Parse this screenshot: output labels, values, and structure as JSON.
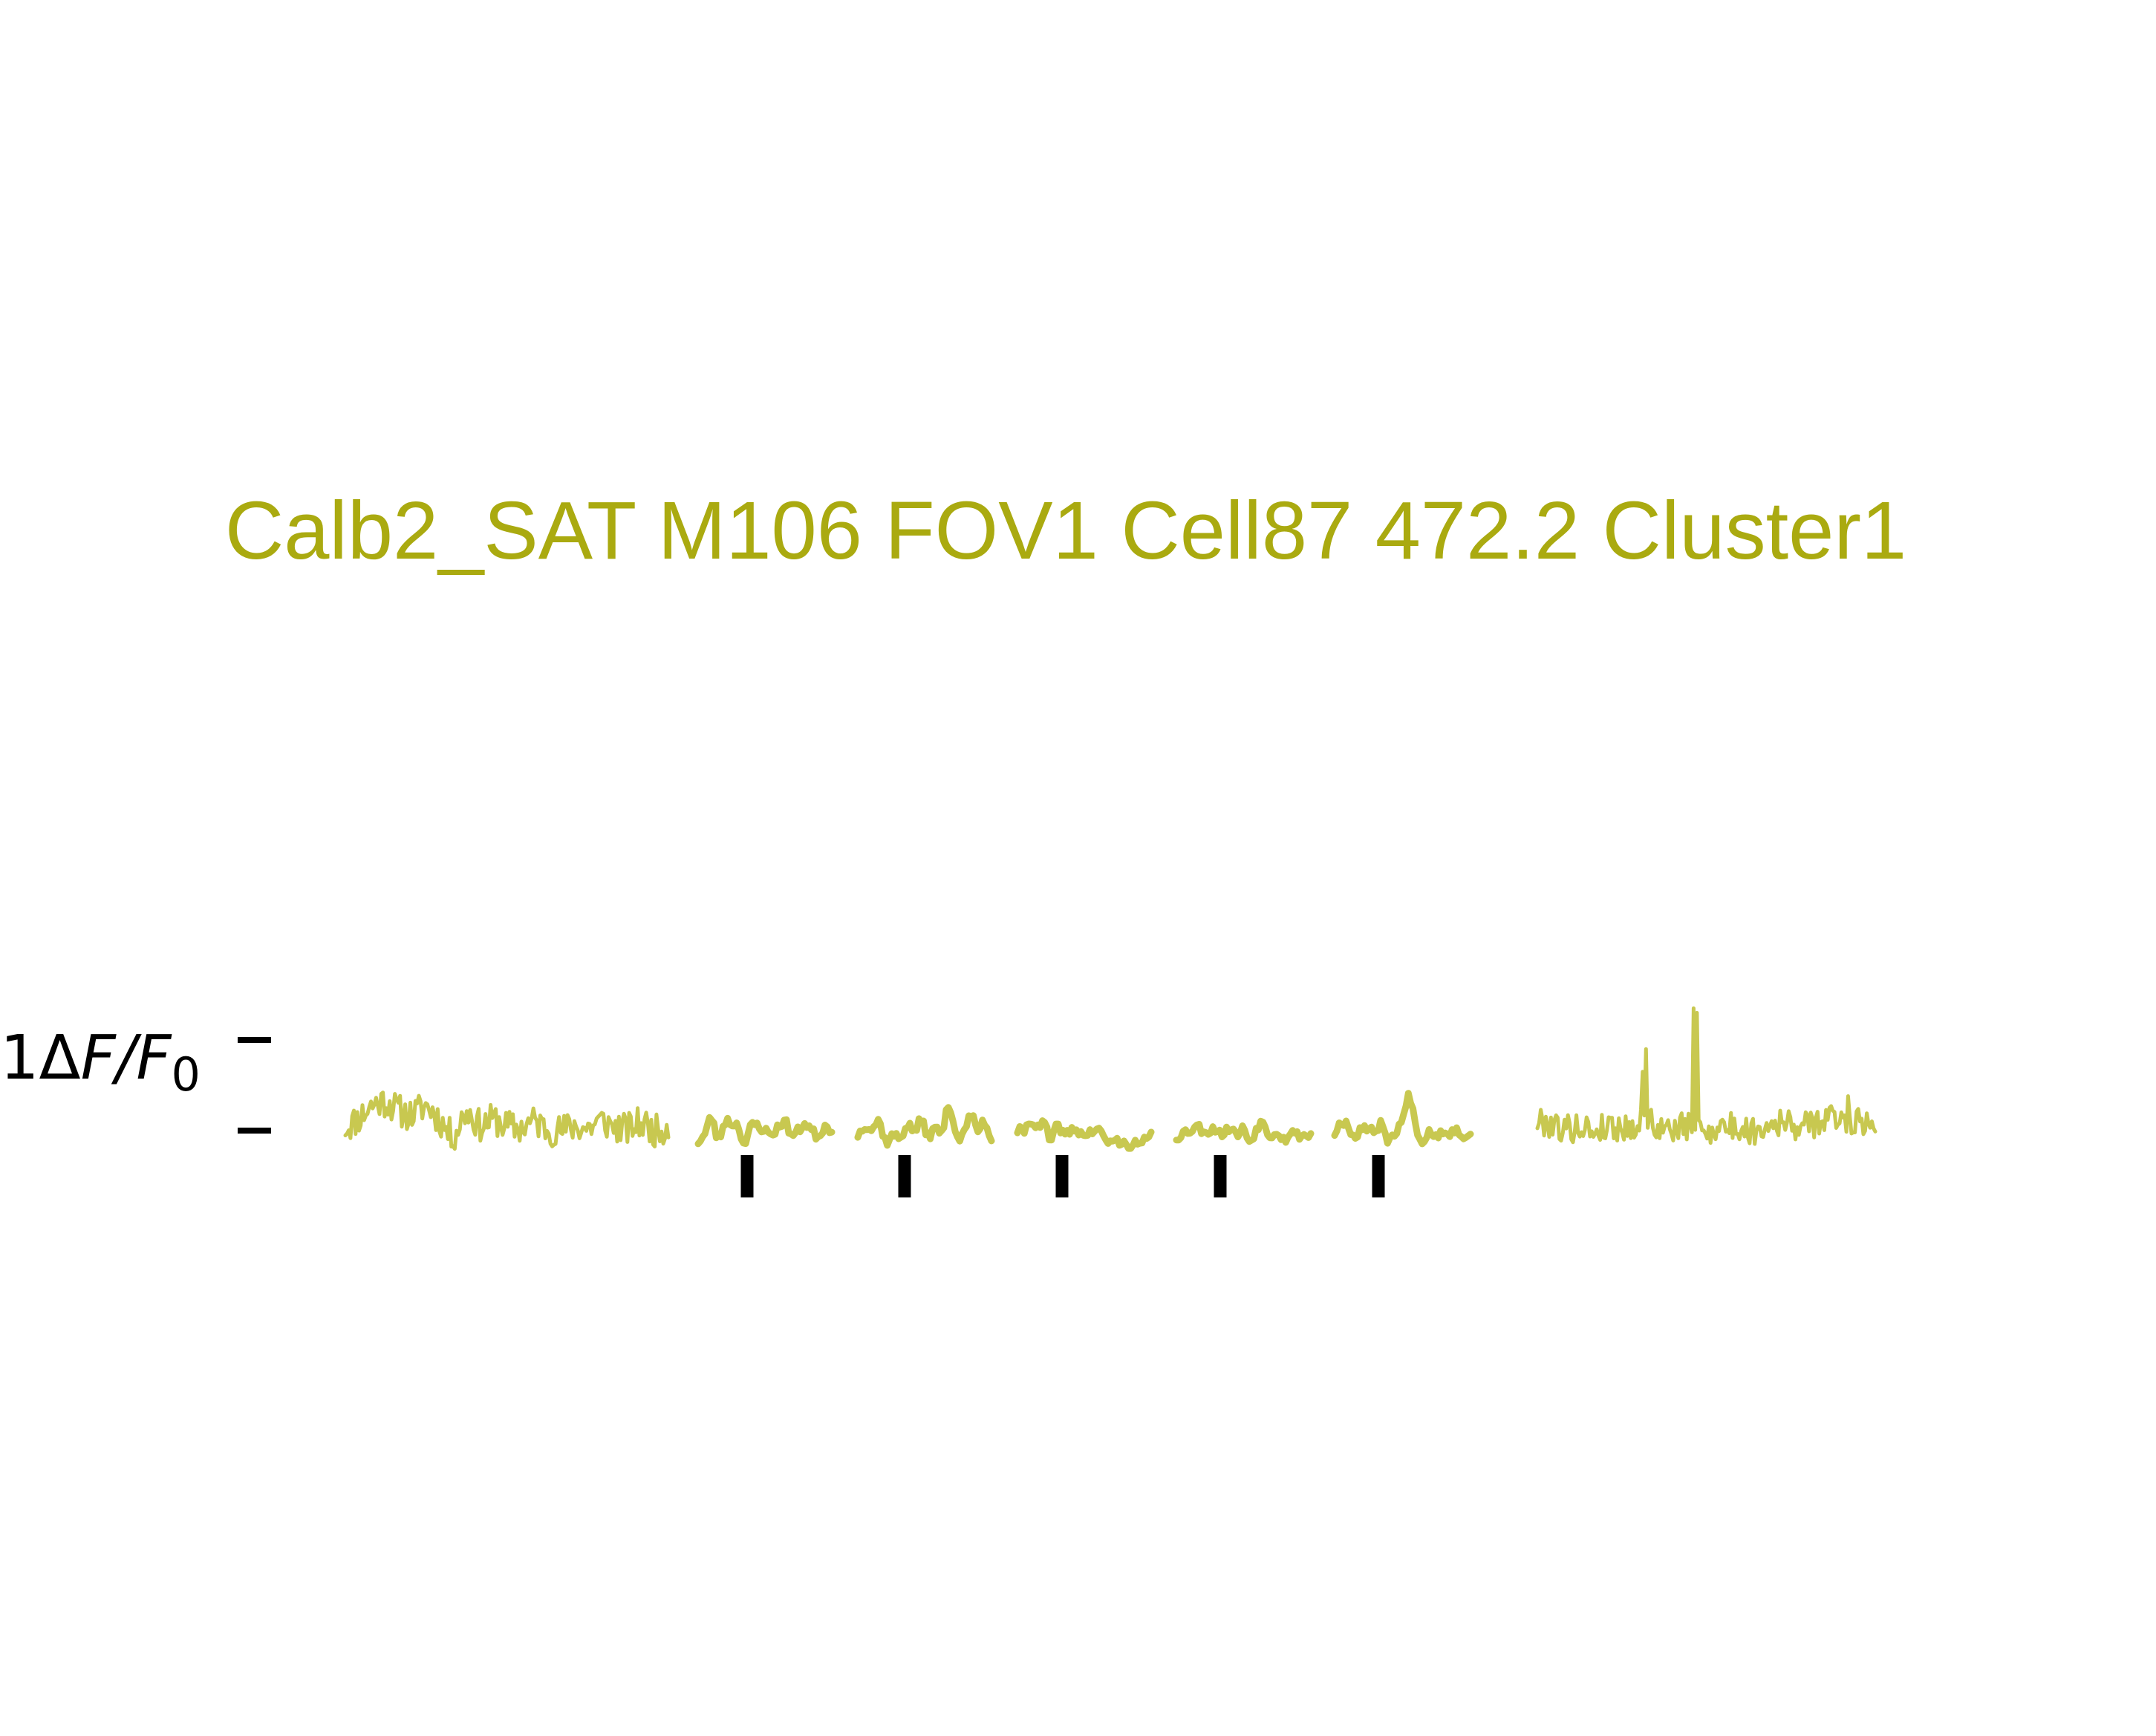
{
  "chart_data": {
    "type": "line",
    "title": "Calb2_SAT M106 FOV1 Cell87 472.2 Cluster1",
    "ylabel": "1ΔF/F0",
    "ylabel_parts": {
      "lead": "1",
      "delta": "Δ",
      "f": "F",
      "slash": "/",
      "f2": "F",
      "subscript": "0"
    },
    "scale_bar_value": 1,
    "color": "#c8c850",
    "title_color": "#aaaa10",
    "marker_color": "#000000",
    "baseline": 0,
    "grid": false,
    "segments": [
      {
        "name": "",
        "kind": "baseline",
        "n": 190,
        "seed": 11,
        "noise": 0.18,
        "y": [
          0.04,
          0.14,
          0.28,
          0.32,
          0.22,
          0.18,
          0.27,
          0.12,
          -0.05,
          0.2,
          0.06,
          0.12,
          0.05,
          0.03,
          0.1,
          0.02,
          0.0,
          0.05,
          0.03,
          0.1,
          0.04,
          0.02,
          0.08,
          0.0,
          0.05
        ]
      },
      {
        "name": "",
        "kind": "trial",
        "n": 60,
        "seed": 23,
        "noise": 0.05,
        "y": [
          -0.12,
          -0.04,
          0.14,
          -0.1,
          0.1,
          0.08,
          0.05,
          -0.15,
          0.06,
          0.05,
          0.0,
          -0.04,
          0.04,
          0.1,
          -0.05,
          0.0,
          0.08,
          0.0,
          -0.06,
          0.05,
          0.0
        ]
      },
      {
        "name": "",
        "kind": "trial",
        "n": 60,
        "seed": 37,
        "noise": 0.05,
        "y": [
          -0.05,
          0.06,
          0.02,
          0.1,
          -0.12,
          -0.05,
          -0.08,
          0.06,
          0.0,
          0.1,
          -0.05,
          0.02,
          0.0,
          0.28,
          -0.04,
          -0.05,
          0.18,
          0.0,
          0.1,
          -0.1
        ]
      },
      {
        "name": "",
        "kind": "trial",
        "n": 60,
        "seed": 41,
        "noise": 0.05,
        "y": [
          0.0,
          0.0,
          0.12,
          0.02,
          0.08,
          -0.12,
          0.06,
          -0.05,
          0.0,
          0.0,
          -0.05,
          -0.02,
          0.02,
          -0.1,
          -0.12,
          -0.12,
          -0.15,
          -0.15,
          -0.15,
          -0.12,
          -0.06
        ]
      },
      {
        "name": "",
        "kind": "trial",
        "n": 60,
        "seed": 53,
        "noise": 0.05,
        "y": [
          -0.08,
          -0.02,
          0.0,
          0.05,
          0.0,
          0.0,
          0.02,
          -0.04,
          0.04,
          -0.05,
          0.02,
          -0.12,
          0.04,
          0.08,
          -0.06,
          0.0,
          -0.1,
          -0.02,
          -0.05,
          -0.05,
          -0.05
        ]
      },
      {
        "name": "",
        "kind": "trial",
        "n": 60,
        "seed": 67,
        "noise": 0.05,
        "y": [
          -0.03,
          0.1,
          0.06,
          -0.08,
          0.05,
          0.0,
          0.0,
          0.08,
          -0.12,
          0.0,
          0.12,
          0.38,
          0.05,
          -0.12,
          0.0,
          -0.05,
          0.0,
          -0.02,
          0.0,
          -0.05,
          -0.06
        ]
      },
      {
        "name": "",
        "kind": "baseline",
        "n": 200,
        "seed": 79,
        "noise": 0.16,
        "y": [
          0.1,
          0.08,
          0.02,
          0.04,
          0.0,
          0.05,
          0.03,
          0.06,
          0.1,
          0.0,
          0.04,
          0.02,
          0.0,
          0.05,
          0.03,
          0.0,
          0.04,
          0.1,
          0.06,
          0.05,
          0.1,
          0.14,
          0.12,
          0.1,
          0.08
        ],
        "spikes": [
          {
            "pos": 0.31,
            "y": 0.65
          },
          {
            "pos": 0.32,
            "y": 0.9
          },
          {
            "pos": 0.46,
            "y": 1.35
          },
          {
            "pos": 0.47,
            "y": 1.3
          },
          {
            "pos": 0.92,
            "y": 0.38
          }
        ]
      }
    ],
    "markers": [
      1,
      2,
      3,
      4,
      5
    ]
  }
}
